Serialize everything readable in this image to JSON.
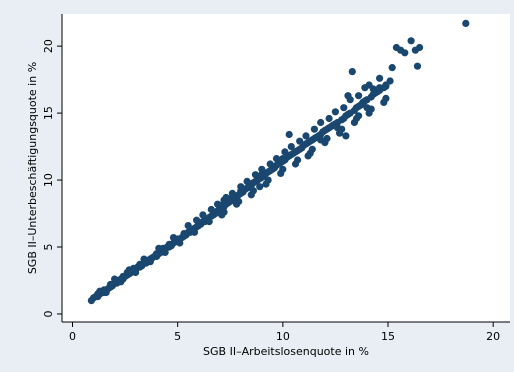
{
  "chart_data": {
    "type": "scatter",
    "title": "",
    "xlabel": "SGB II–Arbeitslosenquote in %",
    "ylabel": "SGB II–Unterbeschäftigungsquote in %",
    "xlim": [
      -0.5,
      20.8
    ],
    "ylim": [
      -0.6,
      22.4
    ],
    "xticks": [
      0,
      5,
      10,
      15,
      20
    ],
    "yticks": [
      0,
      5,
      10,
      15,
      20
    ],
    "grid": false,
    "legend": "none",
    "colors": {
      "marker": "#1a476f",
      "plot_background": "#ffffff",
      "outer_background": "#e8eef3",
      "axis": "#000000"
    },
    "series": [
      {
        "points": [
          [
            0.9,
            1.0
          ],
          [
            1.0,
            1.2
          ],
          [
            1.1,
            1.3
          ],
          [
            1.2,
            1.3
          ],
          [
            1.2,
            1.5
          ],
          [
            1.3,
            1.5
          ],
          [
            1.4,
            1.6
          ],
          [
            1.5,
            1.6
          ],
          [
            1.5,
            1.8
          ],
          [
            1.6,
            1.8
          ],
          [
            1.7,
            1.9
          ],
          [
            1.8,
            2.0
          ],
          [
            1.8,
            2.2
          ],
          [
            1.9,
            2.1
          ],
          [
            2.0,
            2.3
          ],
          [
            2.1,
            2.3
          ],
          [
            2.1,
            2.5
          ],
          [
            2.2,
            2.4
          ],
          [
            2.3,
            2.6
          ],
          [
            2.4,
            2.6
          ],
          [
            2.4,
            2.8
          ],
          [
            2.5,
            2.8
          ],
          [
            2.6,
            2.9
          ],
          [
            2.6,
            3.1
          ],
          [
            2.7,
            3.0
          ],
          [
            2.8,
            3.1
          ],
          [
            2.9,
            3.2
          ],
          [
            2.9,
            3.4
          ],
          [
            3.0,
            3.3
          ],
          [
            3.1,
            3.5
          ],
          [
            3.2,
            3.5
          ],
          [
            3.2,
            3.7
          ],
          [
            3.3,
            3.6
          ],
          [
            3.4,
            3.8
          ],
          [
            3.5,
            3.8
          ],
          [
            3.5,
            4.0
          ],
          [
            3.6,
            3.9
          ],
          [
            3.7,
            4.1
          ],
          [
            3.8,
            4.2
          ],
          [
            3.9,
            4.3
          ],
          [
            4.0,
            4.3
          ],
          [
            4.0,
            4.5
          ],
          [
            4.1,
            4.5
          ],
          [
            4.2,
            4.6
          ],
          [
            4.3,
            4.7
          ],
          [
            4.3,
            4.9
          ],
          [
            4.4,
            4.8
          ],
          [
            4.5,
            5.0
          ],
          [
            4.6,
            5.0
          ],
          [
            4.6,
            5.2
          ],
          [
            4.7,
            5.1
          ],
          [
            4.8,
            5.3
          ],
          [
            4.9,
            5.4
          ],
          [
            5.0,
            5.4
          ],
          [
            5.0,
            5.6
          ],
          [
            5.1,
            5.6
          ],
          [
            5.2,
            5.7
          ],
          [
            5.3,
            5.8
          ],
          [
            5.3,
            6.0
          ],
          [
            5.4,
            5.9
          ],
          [
            5.5,
            6.1
          ],
          [
            5.6,
            6.1
          ],
          [
            5.6,
            6.3
          ],
          [
            5.7,
            6.2
          ],
          [
            5.8,
            6.4
          ],
          [
            5.9,
            6.5
          ],
          [
            6.0,
            6.6
          ],
          [
            6.0,
            6.8
          ],
          [
            6.1,
            6.7
          ],
          [
            6.2,
            6.9
          ],
          [
            6.3,
            6.9
          ],
          [
            6.3,
            7.1
          ],
          [
            6.4,
            7.0
          ],
          [
            6.5,
            7.2
          ],
          [
            6.6,
            7.3
          ],
          [
            6.7,
            7.4
          ],
          [
            6.7,
            7.6
          ],
          [
            6.8,
            7.5
          ],
          [
            6.9,
            7.7
          ],
          [
            7.0,
            7.8
          ],
          [
            7.1,
            7.9
          ],
          [
            7.1,
            8.1
          ],
          [
            7.2,
            8.0
          ],
          [
            7.3,
            8.2
          ],
          [
            7.4,
            8.3
          ],
          [
            7.5,
            8.4
          ],
          [
            7.5,
            8.6
          ],
          [
            7.6,
            8.5
          ],
          [
            7.7,
            8.7
          ],
          [
            7.8,
            8.8
          ],
          [
            7.9,
            8.9
          ],
          [
            8.0,
            9.0
          ],
          [
            8.0,
            9.2
          ],
          [
            8.1,
            9.1
          ],
          [
            8.2,
            9.3
          ],
          [
            8.3,
            9.4
          ],
          [
            8.4,
            9.5
          ],
          [
            8.4,
            9.7
          ],
          [
            8.5,
            9.6
          ],
          [
            8.6,
            9.8
          ],
          [
            8.7,
            9.9
          ],
          [
            8.8,
            10.0
          ],
          [
            8.9,
            10.1
          ],
          [
            9.0,
            10.2
          ],
          [
            9.0,
            10.4
          ],
          [
            9.1,
            10.3
          ],
          [
            9.2,
            10.5
          ],
          [
            9.3,
            10.6
          ],
          [
            9.4,
            10.7
          ],
          [
            9.5,
            10.8
          ],
          [
            9.5,
            11.0
          ],
          [
            9.6,
            10.9
          ],
          [
            9.7,
            11.1
          ],
          [
            9.8,
            11.2
          ],
          [
            9.9,
            11.3
          ],
          [
            10.0,
            11.4
          ],
          [
            10.0,
            11.6
          ],
          [
            10.1,
            11.5
          ],
          [
            10.2,
            11.7
          ],
          [
            10.3,
            11.8
          ],
          [
            10.4,
            11.9
          ],
          [
            10.5,
            12.0
          ],
          [
            10.6,
            12.1
          ],
          [
            10.7,
            12.2
          ],
          [
            10.8,
            12.3
          ],
          [
            10.9,
            12.4
          ],
          [
            11.0,
            12.6
          ],
          [
            11.1,
            12.7
          ],
          [
            11.2,
            12.8
          ],
          [
            11.3,
            12.9
          ],
          [
            11.4,
            13.0
          ],
          [
            11.5,
            13.1
          ],
          [
            11.6,
            13.2
          ],
          [
            11.7,
            13.3
          ],
          [
            11.8,
            13.4
          ],
          [
            11.9,
            13.6
          ],
          [
            12.0,
            13.7
          ],
          [
            12.1,
            13.8
          ],
          [
            12.2,
            13.9
          ],
          [
            12.3,
            14.0
          ],
          [
            12.4,
            14.1
          ],
          [
            12.5,
            14.2
          ],
          [
            12.6,
            14.3
          ],
          [
            12.8,
            14.5
          ],
          [
            12.9,
            14.6
          ],
          [
            13.0,
            14.8
          ],
          [
            13.1,
            14.9
          ],
          [
            13.2,
            15.0
          ],
          [
            13.4,
            15.2
          ],
          [
            13.5,
            15.4
          ],
          [
            13.6,
            15.5
          ],
          [
            13.7,
            15.6
          ],
          [
            13.8,
            15.8
          ],
          [
            13.9,
            15.9
          ],
          [
            14.0,
            16.0
          ],
          [
            14.2,
            16.2
          ],
          [
            14.3,
            16.4
          ],
          [
            14.4,
            16.5
          ],
          [
            14.5,
            16.6
          ],
          [
            14.6,
            16.7
          ],
          [
            14.8,
            16.9
          ],
          [
            14.9,
            17.0
          ],
          [
            1.3,
            1.7
          ],
          [
            2.0,
            2.6
          ],
          [
            2.7,
            3.3
          ],
          [
            3.4,
            4.1
          ],
          [
            4.1,
            4.9
          ],
          [
            4.8,
            5.7
          ],
          [
            5.5,
            6.6
          ],
          [
            6.2,
            7.4
          ],
          [
            6.9,
            8.2
          ],
          [
            7.6,
            9.0
          ],
          [
            8.3,
            9.9
          ],
          [
            9.0,
            10.8
          ],
          [
            9.7,
            11.6
          ],
          [
            10.4,
            12.5
          ],
          [
            11.1,
            13.3
          ],
          [
            11.8,
            14.3
          ],
          [
            12.5,
            15.1
          ],
          [
            13.2,
            16.0
          ],
          [
            13.9,
            16.9
          ],
          [
            14.6,
            17.6
          ],
          [
            1.6,
            1.6
          ],
          [
            2.3,
            2.4
          ],
          [
            3.0,
            3.1
          ],
          [
            3.7,
            3.9
          ],
          [
            4.4,
            4.6
          ],
          [
            5.1,
            5.3
          ],
          [
            5.8,
            6.1
          ],
          [
            6.5,
            6.9
          ],
          [
            7.2,
            7.6
          ],
          [
            7.9,
            8.4
          ],
          [
            8.6,
            9.2
          ],
          [
            9.3,
            10.0
          ],
          [
            10.0,
            10.8
          ],
          [
            10.7,
            11.5
          ],
          [
            11.4,
            12.3
          ],
          [
            12.1,
            13.1
          ],
          [
            12.8,
            13.8
          ],
          [
            13.5,
            14.6
          ],
          [
            14.2,
            15.3
          ],
          [
            14.9,
            16.1
          ],
          [
            5.9,
            7.0
          ],
          [
            6.6,
            7.8
          ],
          [
            7.3,
            8.7
          ],
          [
            8.0,
            9.5
          ],
          [
            8.7,
            10.4
          ],
          [
            9.4,
            11.2
          ],
          [
            10.1,
            12.1
          ],
          [
            10.8,
            12.9
          ],
          [
            11.5,
            13.8
          ],
          [
            12.2,
            14.6
          ],
          [
            12.9,
            15.4
          ],
          [
            13.6,
            16.3
          ],
          [
            7.1,
            7.4
          ],
          [
            7.8,
            8.2
          ],
          [
            8.5,
            8.9
          ],
          [
            9.2,
            9.7
          ],
          [
            9.9,
            10.5
          ],
          [
            10.6,
            11.2
          ],
          [
            11.3,
            12.0
          ],
          [
            12.0,
            12.8
          ],
          [
            12.7,
            13.5
          ],
          [
            13.4,
            14.3
          ],
          [
            14.1,
            15.0
          ],
          [
            14.8,
            15.8
          ],
          [
            7.2,
            8.5
          ],
          [
            8.9,
            9.5
          ],
          [
            10.3,
            13.4
          ],
          [
            11.2,
            11.8
          ],
          [
            11.8,
            13.0
          ],
          [
            12.6,
            13.9
          ],
          [
            13.0,
            13.3
          ],
          [
            13.1,
            16.3
          ],
          [
            13.3,
            18.1
          ],
          [
            13.6,
            14.8
          ],
          [
            14.0,
            15.4
          ],
          [
            14.1,
            17.1
          ],
          [
            14.3,
            16.8
          ],
          [
            14.6,
            16.9
          ],
          [
            14.9,
            17.1
          ],
          [
            15.1,
            17.4
          ],
          [
            15.2,
            18.4
          ],
          [
            15.4,
            19.9
          ],
          [
            15.6,
            19.7
          ],
          [
            15.8,
            19.5
          ],
          [
            16.1,
            20.4
          ],
          [
            16.3,
            19.7
          ],
          [
            16.4,
            18.5
          ],
          [
            16.5,
            19.9
          ],
          [
            18.7,
            21.7
          ]
        ]
      }
    ]
  }
}
